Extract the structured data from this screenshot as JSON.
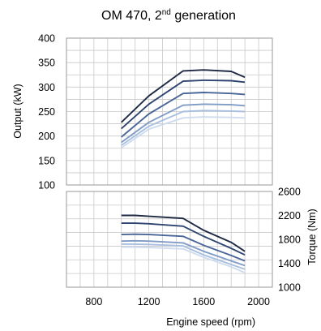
{
  "chart_data": [
    {
      "type": "line",
      "title_main": "OM 470, 2",
      "title_sup": "nd",
      "title_rest": " generation",
      "ylabel": "Output (kW)",
      "ylim": [
        100,
        400
      ],
      "yticks": [
        100,
        150,
        200,
        250,
        300,
        350,
        400
      ],
      "xlim": [
        600,
        2100
      ],
      "grid": true,
      "series": [
        {
          "x": [
            1000,
            1200,
            1450,
            1600,
            1800,
            1900
          ],
          "values": [
            228,
            282,
            333,
            335,
            332,
            320
          ],
          "color": "#1e2a44"
        },
        {
          "x": [
            1000,
            1200,
            1450,
            1600,
            1800,
            1900
          ],
          "values": [
            215,
            265,
            312,
            314,
            313,
            310
          ],
          "color": "#2e4470"
        },
        {
          "x": [
            1000,
            1200,
            1450,
            1600,
            1800,
            1900
          ],
          "values": [
            198,
            245,
            287,
            289,
            287,
            285
          ],
          "color": "#4a6698"
        },
        {
          "x": [
            1000,
            1200,
            1450,
            1600,
            1800,
            1900
          ],
          "values": [
            187,
            228,
            263,
            265,
            264,
            262
          ],
          "color": "#7f9bc6"
        },
        {
          "x": [
            1000,
            1200,
            1450,
            1600,
            1800,
            1900
          ],
          "values": [
            181,
            220,
            250,
            252,
            251,
            250
          ],
          "color": "#a9bfdf"
        },
        {
          "x": [
            1000,
            1200,
            1450,
            1600,
            1800,
            1900
          ],
          "values": [
            176,
            214,
            237,
            239,
            238,
            237
          ],
          "color": "#cfdcef"
        }
      ]
    },
    {
      "type": "line",
      "xlabel": "Engine speed (rpm)",
      "ylabel": "Torque (Nm)",
      "xlim": [
        600,
        2100
      ],
      "xticks": [
        800,
        1200,
        1600,
        2000
      ],
      "ylim": [
        1000,
        2600
      ],
      "yticks": [
        1000,
        1400,
        1800,
        2200,
        2600
      ],
      "grid": true,
      "series": [
        {
          "x": [
            1000,
            1100,
            1200,
            1450,
            1600,
            1800,
            1900
          ],
          "values": [
            2200,
            2200,
            2185,
            2150,
            1950,
            1750,
            1600
          ],
          "color": "#1e2a44"
        },
        {
          "x": [
            1000,
            1100,
            1200,
            1450,
            1600,
            1800,
            1900
          ],
          "values": [
            2070,
            2070,
            2060,
            2020,
            1850,
            1650,
            1540
          ],
          "color": "#2e4470"
        },
        {
          "x": [
            1000,
            1100,
            1200,
            1450,
            1600,
            1800,
            1900
          ],
          "values": [
            1880,
            1885,
            1880,
            1850,
            1700,
            1530,
            1440
          ],
          "color": "#4a6698"
        },
        {
          "x": [
            1000,
            1100,
            1200,
            1450,
            1600,
            1800,
            1900
          ],
          "values": [
            1770,
            1775,
            1770,
            1740,
            1600,
            1440,
            1360
          ],
          "color": "#7f9bc6"
        },
        {
          "x": [
            1000,
            1100,
            1200,
            1450,
            1600,
            1800,
            1900
          ],
          "values": [
            1720,
            1720,
            1715,
            1690,
            1540,
            1380,
            1300
          ],
          "color": "#a9bfdf"
        },
        {
          "x": [
            1000,
            1100,
            1200,
            1450,
            1600,
            1800,
            1900
          ],
          "values": [
            1670,
            1670,
            1665,
            1640,
            1500,
            1340,
            1240
          ],
          "color": "#cfdcef"
        }
      ]
    }
  ]
}
